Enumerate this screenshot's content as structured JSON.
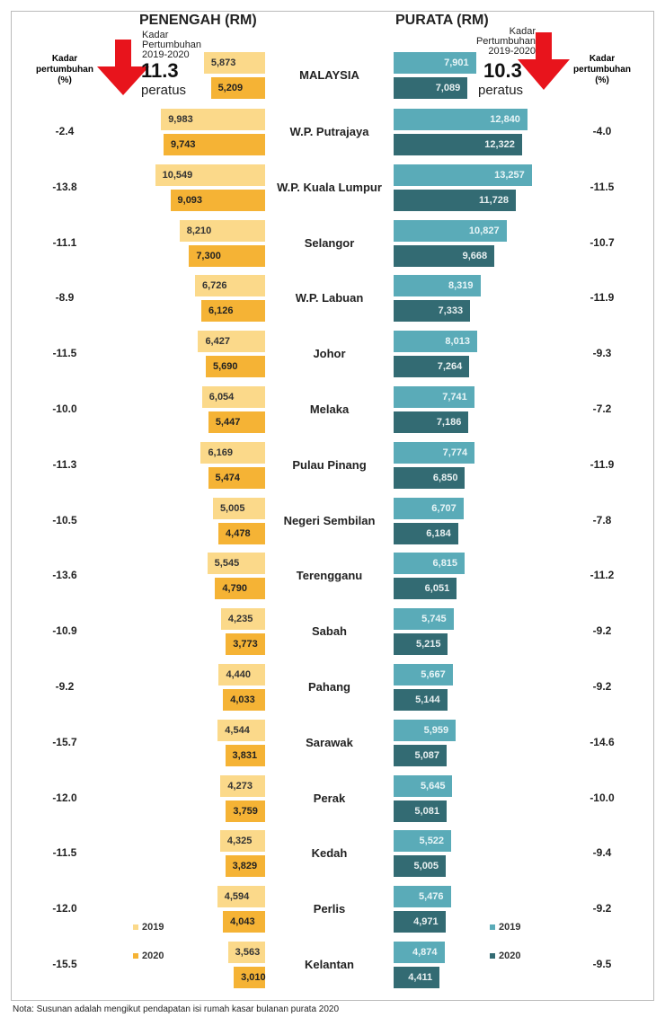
{
  "chart_data": {
    "type": "bar",
    "orientation": "horizontal-butterfly",
    "left_title": "PENENGAH (RM)",
    "right_title": "PURATA (RM)",
    "growth_column_label": "Kadar pertumbuhan (%)",
    "headline_left": {
      "label": "Kadar Pertumbuhan 2019-2020",
      "value": "11.3",
      "unit": "peratus",
      "direction": "down"
    },
    "headline_right": {
      "label": "Kadar Pertumbuhan 2019-2020",
      "value": "10.3",
      "unit": "peratus",
      "direction": "down"
    },
    "categories": [
      "MALAYSIA",
      "W.P. Putrajaya",
      "W.P. Kuala Lumpur",
      "Selangor",
      "W.P. Labuan",
      "Johor",
      "Melaka",
      "Pulau Pinang",
      "Negeri Sembilan",
      "Terengganu",
      "Sabah",
      "Pahang",
      "Sarawak",
      "Perak",
      "Kedah",
      "Perlis",
      "Kelantan"
    ],
    "median": [
      {
        "name": "2019",
        "color": "#fbd98a",
        "values": [
          5873,
          9983,
          10549,
          8210,
          6726,
          6427,
          6054,
          6169,
          5005,
          5545,
          4235,
          4440,
          4544,
          4273,
          4325,
          4594,
          3563
        ]
      },
      {
        "name": "2020",
        "color": "#f5b335",
        "values": [
          5209,
          9743,
          9093,
          7300,
          6126,
          5690,
          5447,
          5474,
          4478,
          4790,
          3773,
          4033,
          3831,
          3759,
          3829,
          4043,
          3010
        ]
      }
    ],
    "mean": [
      {
        "name": "2019",
        "color": "#5aabb8",
        "values": [
          7901,
          12840,
          13257,
          10827,
          8319,
          8013,
          7741,
          7774,
          6707,
          6815,
          5745,
          5667,
          5959,
          5645,
          5522,
          5476,
          4874
        ]
      },
      {
        "name": "2020",
        "color": "#336b73",
        "values": [
          7089,
          12322,
          11728,
          9668,
          7333,
          7264,
          7186,
          6850,
          6184,
          6051,
          5215,
          5144,
          5087,
          5081,
          5005,
          4971,
          4411
        ]
      }
    ],
    "median_growth": [
      "",
      "-2.4",
      "-13.8",
      "-11.1",
      "-8.9",
      "-11.5",
      "-10.0",
      "-11.3",
      "-10.5",
      "-13.6",
      "-10.9",
      "-9.2",
      "-15.7",
      "-12.0",
      "-11.5",
      "-12.0",
      "-15.5"
    ],
    "mean_growth": [
      "",
      "-4.0",
      "-11.5",
      "-10.7",
      "-11.9",
      "-9.3",
      "-7.2",
      "-11.9",
      "-7.8",
      "-11.2",
      "-9.2",
      "-9.2",
      "-14.6",
      "-10.0",
      "-9.4",
      "-9.2",
      "-9.5"
    ],
    "legend": [
      "2019",
      "2020"
    ],
    "note": "Nota: Susunan adalah mengikut pendapatan isi rumah kasar bulanan purata 2020"
  }
}
